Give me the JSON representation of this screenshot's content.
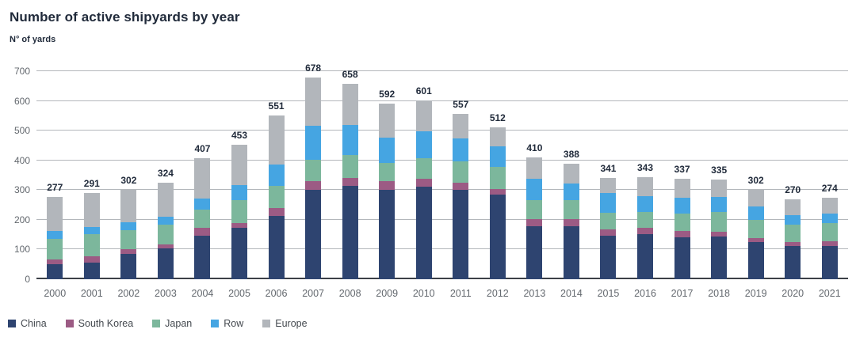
{
  "header": {
    "title": "Number of active shipyards by year",
    "subtitle": "N° of yards"
  },
  "chart_data": {
    "type": "bar",
    "stacked": true,
    "title": "Number of active shipyards by year",
    "ylabel": "N° of yards",
    "xlabel": "",
    "ylim": [
      0,
      700
    ],
    "yticks": [
      0,
      100,
      200,
      300,
      400,
      500,
      600,
      700
    ],
    "grid": true,
    "legend_position": "bottom-left",
    "categories": [
      "2000",
      "2001",
      "2002",
      "2003",
      "2004",
      "2005",
      "2006",
      "2007",
      "2008",
      "2009",
      "2010",
      "2011",
      "2012",
      "2013",
      "2014",
      "2015",
      "2016",
      "2017",
      "2018",
      "2019",
      "2020",
      "2021"
    ],
    "series": [
      {
        "name": "China",
        "color": "#2e4470",
        "values": [
          50,
          56,
          85,
          104,
          147,
          172,
          213,
          300,
          314,
          302,
          311,
          302,
          284,
          179,
          178,
          146,
          153,
          141,
          145,
          124,
          111,
          113
        ]
      },
      {
        "name": "South Korea",
        "color": "#9c5b84",
        "values": [
          16,
          20,
          16,
          13,
          25,
          18,
          27,
          29,
          28,
          29,
          27,
          24,
          20,
          24,
          24,
          21,
          20,
          21,
          16,
          15,
          15,
          16
        ]
      },
      {
        "name": "Japan",
        "color": "#7cb79c",
        "values": [
          70,
          76,
          63,
          66,
          62,
          75,
          74,
          74,
          76,
          61,
          69,
          70,
          73,
          64,
          65,
          58,
          54,
          59,
          65,
          60,
          57,
          61
        ]
      },
      {
        "name": "Row",
        "color": "#45a5e2",
        "values": [
          26,
          23,
          27,
          28,
          38,
          52,
          72,
          113,
          100,
          85,
          90,
          78,
          70,
          70,
          54,
          65,
          52,
          52,
          51,
          45,
          32,
          30
        ]
      },
      {
        "name": "Europe",
        "color": "#b2b6bb",
        "values": [
          115,
          116,
          111,
          113,
          135,
          136,
          165,
          162,
          140,
          115,
          104,
          83,
          65,
          73,
          67,
          51,
          64,
          64,
          58,
          58,
          55,
          54
        ]
      }
    ],
    "totals": [
      277,
      291,
      302,
      324,
      407,
      453,
      551,
      678,
      658,
      592,
      601,
      557,
      512,
      410,
      388,
      341,
      343,
      337,
      335,
      302,
      270,
      274
    ]
  },
  "colors": {
    "title_text": "#212b3b",
    "axis_text": "#63686e",
    "gridline": "#b3b7bb",
    "zero_line": "#3c4047",
    "background": "#ffffff"
  }
}
